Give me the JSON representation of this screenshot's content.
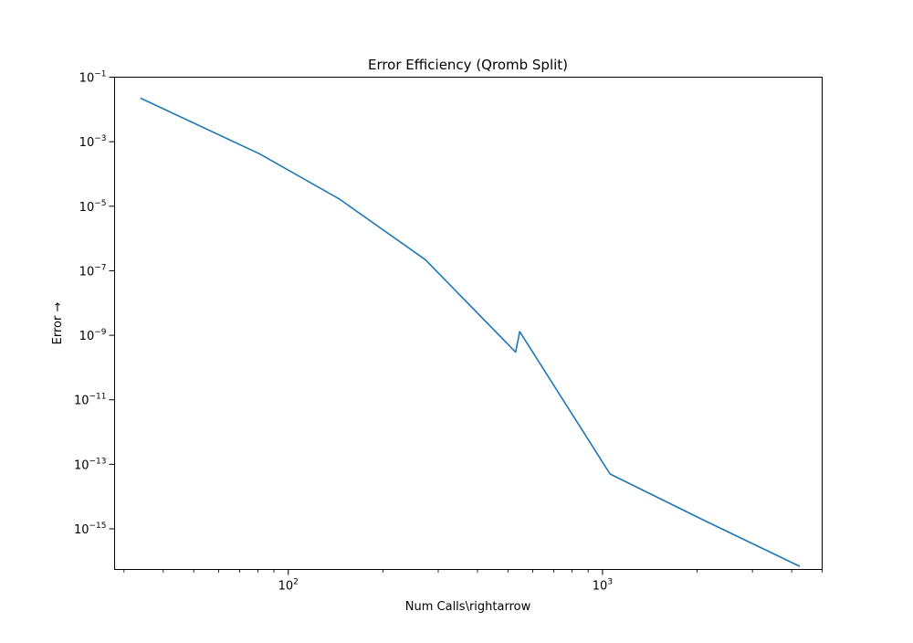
{
  "chart_data": {
    "type": "line",
    "title": "Error Efficiency (Qromb Split)",
    "xlabel": "Num Calls\\rightarrow",
    "ylabel": "Error →",
    "xscale": "log",
    "yscale": "log",
    "xlim": [
      28,
      5000
    ],
    "ylim": [
      5.5e-17,
      0.1
    ],
    "grid": false,
    "legend": "none",
    "x_ticks": [
      {
        "value": 100,
        "base": "10",
        "exp": "2"
      },
      {
        "value": 1000,
        "base": "10",
        "exp": "3"
      }
    ],
    "y_ticks": [
      {
        "value": 0.1,
        "base": "10",
        "exp": "−1"
      },
      {
        "value": 0.001,
        "base": "10",
        "exp": "−3"
      },
      {
        "value": 1e-05,
        "base": "10",
        "exp": "−5"
      },
      {
        "value": 1e-07,
        "base": "10",
        "exp": "−7"
      },
      {
        "value": 1e-09,
        "base": "10",
        "exp": "−9"
      },
      {
        "value": 1e-11,
        "base": "10",
        "exp": "−11"
      },
      {
        "value": 1e-13,
        "base": "10",
        "exp": "−13"
      },
      {
        "value": 1e-15,
        "base": "10",
        "exp": "−15"
      }
    ],
    "series": [
      {
        "color": "#1f77b4",
        "x": [
          34,
          81,
          145,
          273,
          529,
          545,
          1057,
          2113,
          4225
        ],
        "y": [
          0.022,
          0.00042,
          1.7e-05,
          2.2e-07,
          3e-10,
          1.3e-09,
          5e-14,
          1.8e-15,
          7e-17
        ]
      }
    ]
  }
}
